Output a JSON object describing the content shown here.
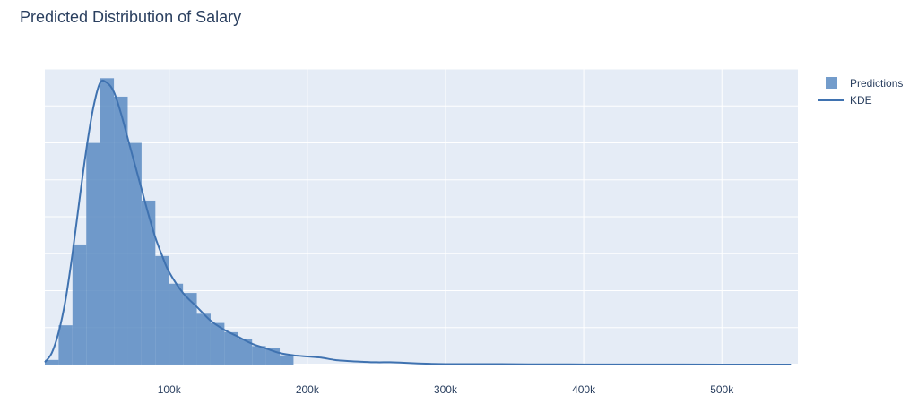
{
  "title": "Predicted Distribution of Salary",
  "chart_data": {
    "type": "bar",
    "subtype": "histogram_with_kde",
    "title": "Predicted Distribution of Salary",
    "xlabel": "",
    "ylabel": "",
    "xlim": [
      10000,
      555000
    ],
    "ylim": [
      0,
      0.0125
    ],
    "bin_width": 10000,
    "x_ticks": [
      {
        "value": 100000,
        "label": "100k"
      },
      {
        "value": 200000,
        "label": "200k"
      },
      {
        "value": 300000,
        "label": "300k"
      },
      {
        "value": 400000,
        "label": "400k"
      },
      {
        "value": 500000,
        "label": "500k"
      }
    ],
    "y_gridlines": [
      0,
      0.0016,
      0.0032,
      0.0048,
      0.0064,
      0.008,
      0.0096,
      0.0112,
      0.0128
    ],
    "y_tick_labels_shown": false,
    "grid": true,
    "legend_position": "top-right",
    "series": [
      {
        "name": "Predictions",
        "kind": "histogram",
        "color": "#5b8bc2",
        "bins": [
          {
            "x0": 10000,
            "x1": 20000,
            "y": 0.0002
          },
          {
            "x0": 20000,
            "x1": 30000,
            "y": 0.0017
          },
          {
            "x0": 30000,
            "x1": 40000,
            "y": 0.0052
          },
          {
            "x0": 40000,
            "x1": 50000,
            "y": 0.0096
          },
          {
            "x0": 50000,
            "x1": 60000,
            "y": 0.0124
          },
          {
            "x0": 60000,
            "x1": 70000,
            "y": 0.0116
          },
          {
            "x0": 70000,
            "x1": 80000,
            "y": 0.0096
          },
          {
            "x0": 80000,
            "x1": 90000,
            "y": 0.0071
          },
          {
            "x0": 90000,
            "x1": 100000,
            "y": 0.0047
          },
          {
            "x0": 100000,
            "x1": 110000,
            "y": 0.0035
          },
          {
            "x0": 110000,
            "x1": 120000,
            "y": 0.0031
          },
          {
            "x0": 120000,
            "x1": 130000,
            "y": 0.0022
          },
          {
            "x0": 130000,
            "x1": 140000,
            "y": 0.0018
          },
          {
            "x0": 140000,
            "x1": 150000,
            "y": 0.0014
          },
          {
            "x0": 150000,
            "x1": 160000,
            "y": 0.0011
          },
          {
            "x0": 160000,
            "x1": 170000,
            "y": 0.0008
          },
          {
            "x0": 170000,
            "x1": 180000,
            "y": 0.0007
          },
          {
            "x0": 180000,
            "x1": 190000,
            "y": 0.0004
          }
        ]
      },
      {
        "name": "KDE",
        "kind": "line",
        "color": "#3f72b0",
        "x": [
          10000,
          15000,
          20000,
          25000,
          30000,
          35000,
          40000,
          45000,
          50000,
          55000,
          60000,
          65000,
          70000,
          75000,
          80000,
          85000,
          90000,
          95000,
          100000,
          110000,
          120000,
          130000,
          140000,
          150000,
          160000,
          170000,
          180000,
          190000,
          200000,
          210000,
          220000,
          230000,
          240000,
          250000,
          260000,
          270000,
          280000,
          290000,
          300000,
          320000,
          340000,
          360000,
          380000,
          400000,
          430000,
          460000,
          500000,
          550000
        ],
        "y": [
          0.0001,
          0.0005,
          0.0014,
          0.0028,
          0.0048,
          0.0071,
          0.0093,
          0.0111,
          0.0122,
          0.0122,
          0.0118,
          0.0109,
          0.0098,
          0.0087,
          0.0076,
          0.0065,
          0.0055,
          0.0047,
          0.004,
          0.0031,
          0.0025,
          0.0019,
          0.0015,
          0.0012,
          0.0009,
          0.0007,
          0.0005,
          0.0004,
          0.00035,
          0.0003,
          0.0002,
          0.00015,
          0.00012,
          0.0001,
          0.0001,
          8e-05,
          5e-05,
          3e-05,
          2e-05,
          2e-05,
          2e-05,
          1e-05,
          1e-05,
          5e-06,
          4e-06,
          3e-06,
          2e-06,
          2e-06
        ]
      }
    ]
  }
}
